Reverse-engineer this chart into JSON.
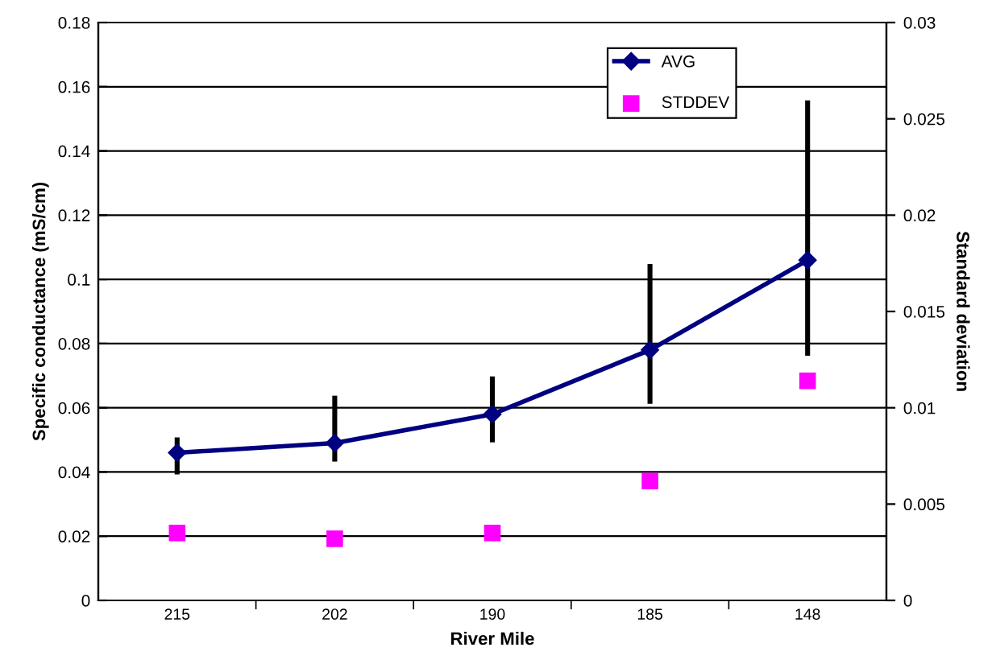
{
  "chart_data": {
    "type": "line",
    "xlabel": "River Mile",
    "ylabel": "Specific conductance (mS/cm)",
    "y2label": "Standard deviation",
    "categories": [
      "215",
      "202",
      "190",
      "185",
      "148"
    ],
    "series": [
      {
        "name": "AVG",
        "color": "#000080",
        "marker": "diamond",
        "values": [
          0.046,
          0.049,
          0.058,
          0.078,
          0.106
        ],
        "errors": [
          [
            0.04,
            0.05
          ],
          [
            0.044,
            0.063
          ],
          [
            0.05,
            0.069
          ],
          [
            0.062,
            0.104
          ],
          [
            0.077,
            0.155
          ]
        ]
      },
      {
        "name": "STDDEV",
        "type": "scatter",
        "axis": "y2",
        "color": "#ff00ff",
        "marker": "square",
        "values": [
          0.0035,
          0.0032,
          0.0035,
          0.0062,
          0.0114
        ]
      }
    ],
    "ylim": [
      0,
      0.18
    ],
    "yticks": [
      0,
      0.02,
      0.04,
      0.06,
      0.08,
      0.1,
      0.12,
      0.14,
      0.16,
      0.18
    ],
    "y2lim": [
      0,
      0.03
    ],
    "y2ticks": [
      0,
      0.005,
      0.01,
      0.015,
      0.02,
      0.025,
      0.03
    ],
    "grid": "y",
    "legend": "top right"
  }
}
